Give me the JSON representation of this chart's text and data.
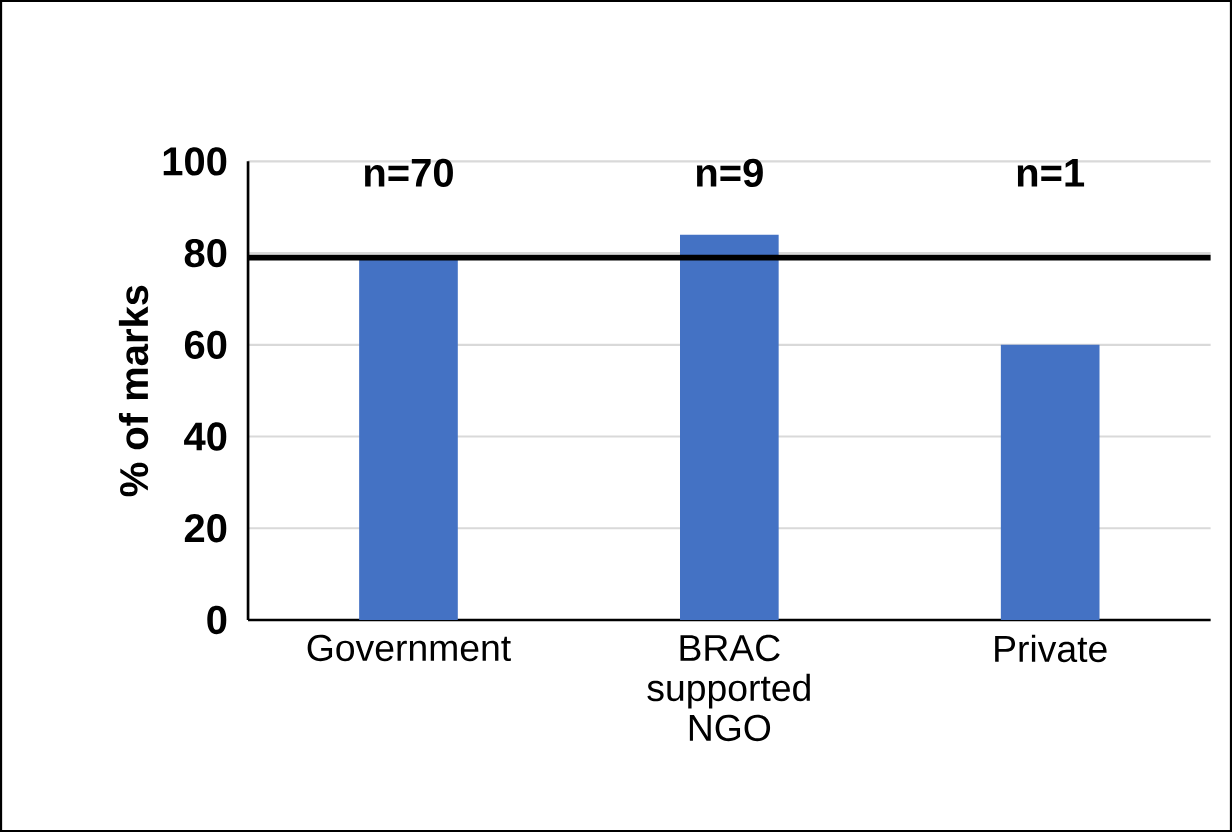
{
  "chart_data": {
    "type": "bar",
    "ylabel": "% of marks",
    "categories": [
      "Government",
      "BRAC supported NGO",
      "Private"
    ],
    "values": [
      79,
      84,
      60
    ],
    "color": "#4472c4",
    "ylim": [
      0,
      100
    ],
    "yticks": [
      0,
      20,
      40,
      60,
      80,
      100
    ],
    "grid": "y",
    "ref_lines": [
      {
        "axis": "y",
        "value": 79,
        "color": "#000000"
      }
    ],
    "annotations": [
      "n=70",
      "n=9",
      "n=1"
    ]
  }
}
